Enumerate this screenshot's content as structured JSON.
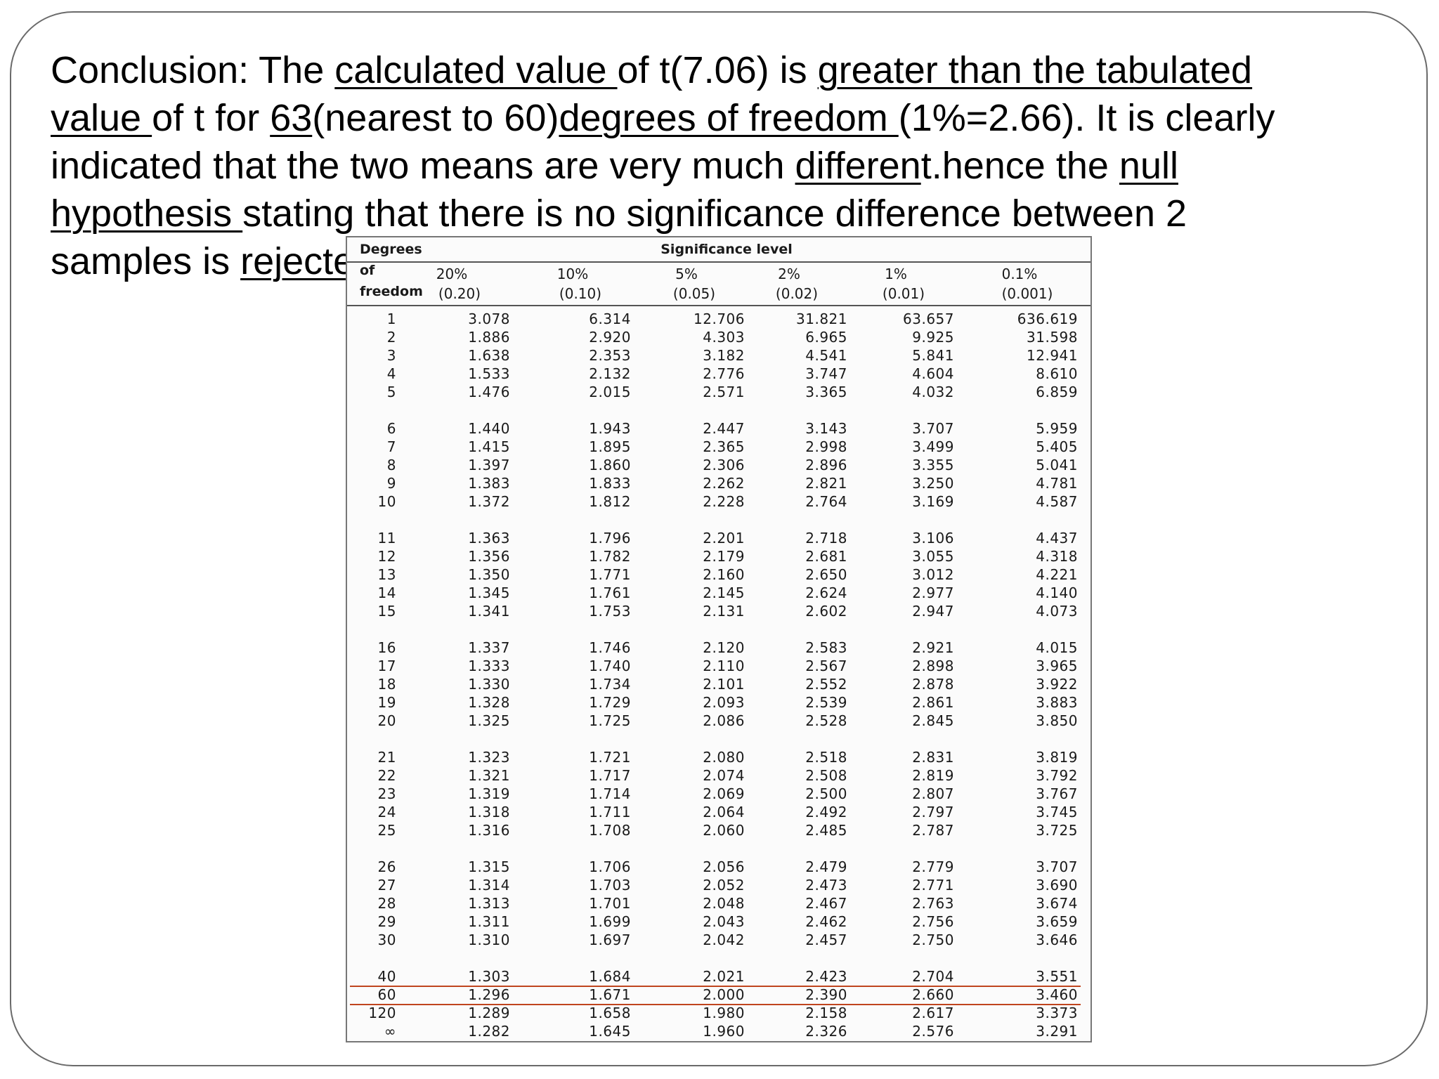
{
  "conclusion": {
    "lines": [
      [
        {
          "t": "Conclusion: The ",
          "u": false
        },
        {
          "t": "calculated value ",
          "u": true
        },
        {
          "t": "of t(7.06) is ",
          "u": false
        },
        {
          "t": "greater than the tabulated",
          "u": true
        }
      ],
      [
        {
          "t": "value ",
          "u": true
        },
        {
          "t": "of t for ",
          "u": false
        },
        {
          "t": "63",
          "u": true
        },
        {
          "t": "(nearest to 60)",
          "u": false
        },
        {
          "t": "degrees of freedom ",
          "u": true
        },
        {
          "t": "(1%=2.66). It is clearly",
          "u": false
        }
      ],
      [
        {
          "t": "indicated that the two means are very much ",
          "u": false
        },
        {
          "t": "differen",
          "u": true
        },
        {
          "t": "t.hence the ",
          "u": false
        },
        {
          "t": "null",
          "u": true
        }
      ],
      [
        {
          "t": "hypothesis ",
          "u": true
        },
        {
          "t": "stating that there is no significance difference between 2",
          "u": false
        }
      ],
      [
        {
          "t": "samples is ",
          "u": false
        },
        {
          "t": "rejected",
          "u": true
        }
      ]
    ]
  },
  "table": {
    "header_title": "Significance level",
    "dof_label_lines": [
      "Degrees",
      "of",
      "freedom"
    ],
    "columns": [
      {
        "pct": "20%",
        "p": "(0.20)"
      },
      {
        "pct": "10%",
        "p": "(0.10)"
      },
      {
        "pct": "5%",
        "p": "(0.05)"
      },
      {
        "pct": "2%",
        "p": "(0.02)"
      },
      {
        "pct": "1%",
        "p": "(0.01)"
      },
      {
        "pct": "0.1%",
        "p": "(0.001)"
      }
    ],
    "groups": [
      [
        [
          "1",
          "3.078",
          "6.314",
          "12.706",
          "31.821",
          "63.657",
          "636.619"
        ],
        [
          "2",
          "1.886",
          "2.920",
          "4.303",
          "6.965",
          "9.925",
          "31.598"
        ],
        [
          "3",
          "1.638",
          "2.353",
          "3.182",
          "4.541",
          "5.841",
          "12.941"
        ],
        [
          "4",
          "1.533",
          "2.132",
          "2.776",
          "3.747",
          "4.604",
          "8.610"
        ],
        [
          "5",
          "1.476",
          "2.015",
          "2.571",
          "3.365",
          "4.032",
          "6.859"
        ]
      ],
      [
        [
          "6",
          "1.440",
          "1.943",
          "2.447",
          "3.143",
          "3.707",
          "5.959"
        ],
        [
          "7",
          "1.415",
          "1.895",
          "2.365",
          "2.998",
          "3.499",
          "5.405"
        ],
        [
          "8",
          "1.397",
          "1.860",
          "2.306",
          "2.896",
          "3.355",
          "5.041"
        ],
        [
          "9",
          "1.383",
          "1.833",
          "2.262",
          "2.821",
          "3.250",
          "4.781"
        ],
        [
          "10",
          "1.372",
          "1.812",
          "2.228",
          "2.764",
          "3.169",
          "4.587"
        ]
      ],
      [
        [
          "11",
          "1.363",
          "1.796",
          "2.201",
          "2.718",
          "3.106",
          "4.437"
        ],
        [
          "12",
          "1.356",
          "1.782",
          "2.179",
          "2.681",
          "3.055",
          "4.318"
        ],
        [
          "13",
          "1.350",
          "1.771",
          "2.160",
          "2.650",
          "3.012",
          "4.221"
        ],
        [
          "14",
          "1.345",
          "1.761",
          "2.145",
          "2.624",
          "2.977",
          "4.140"
        ],
        [
          "15",
          "1.341",
          "1.753",
          "2.131",
          "2.602",
          "2.947",
          "4.073"
        ]
      ],
      [
        [
          "16",
          "1.337",
          "1.746",
          "2.120",
          "2.583",
          "2.921",
          "4.015"
        ],
        [
          "17",
          "1.333",
          "1.740",
          "2.110",
          "2.567",
          "2.898",
          "3.965"
        ],
        [
          "18",
          "1.330",
          "1.734",
          "2.101",
          "2.552",
          "2.878",
          "3.922"
        ],
        [
          "19",
          "1.328",
          "1.729",
          "2.093",
          "2.539",
          "2.861",
          "3.883"
        ],
        [
          "20",
          "1.325",
          "1.725",
          "2.086",
          "2.528",
          "2.845",
          "3.850"
        ]
      ],
      [
        [
          "21",
          "1.323",
          "1.721",
          "2.080",
          "2.518",
          "2.831",
          "3.819"
        ],
        [
          "22",
          "1.321",
          "1.717",
          "2.074",
          "2.508",
          "2.819",
          "3.792"
        ],
        [
          "23",
          "1.319",
          "1.714",
          "2.069",
          "2.500",
          "2.807",
          "3.767"
        ],
        [
          "24",
          "1.318",
          "1.711",
          "2.064",
          "2.492",
          "2.797",
          "3.745"
        ],
        [
          "25",
          "1.316",
          "1.708",
          "2.060",
          "2.485",
          "2.787",
          "3.725"
        ]
      ],
      [
        [
          "26",
          "1.315",
          "1.706",
          "2.056",
          "2.479",
          "2.779",
          "3.707"
        ],
        [
          "27",
          "1.314",
          "1.703",
          "2.052",
          "2.473",
          "2.771",
          "3.690"
        ],
        [
          "28",
          "1.313",
          "1.701",
          "2.048",
          "2.467",
          "2.763",
          "3.674"
        ],
        [
          "29",
          "1.311",
          "1.699",
          "2.043",
          "2.462",
          "2.756",
          "3.659"
        ],
        [
          "30",
          "1.310",
          "1.697",
          "2.042",
          "2.457",
          "2.750",
          "3.646"
        ]
      ],
      [
        [
          "40",
          "1.303",
          "1.684",
          "2.021",
          "2.423",
          "2.704",
          "3.551"
        ],
        [
          "60",
          "1.296",
          "1.671",
          "2.000",
          "2.390",
          "2.660",
          "3.460"
        ],
        [
          "120",
          "1.289",
          "1.658",
          "1.980",
          "2.158",
          "2.617",
          "3.373"
        ],
        [
          "∞",
          "1.282",
          "1.645",
          "1.960",
          "2.326",
          "2.576",
          "3.291"
        ]
      ]
    ],
    "highlight_row_dof": "60",
    "highlight_color": "#c0451e"
  }
}
